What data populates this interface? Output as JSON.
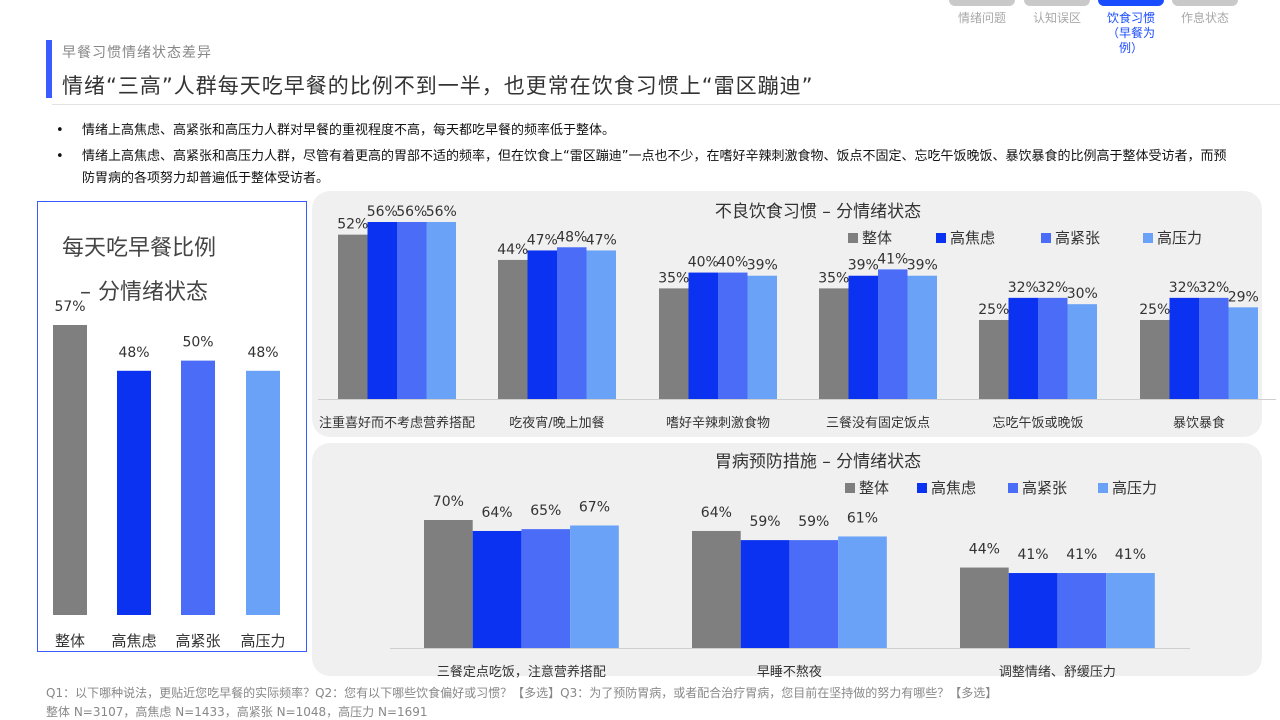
{
  "nav": {
    "tabs": [
      {
        "label": "情绪问题",
        "active": false
      },
      {
        "label": "认知误区",
        "active": false
      },
      {
        "label": "饮食习惯",
        "sub": "（早餐为例）",
        "active": true
      },
      {
        "label": "作息状态",
        "active": false
      }
    ]
  },
  "header": {
    "section": "早餐习惯情绪状态差异",
    "headline": "情绪“三高”人群每天吃早餐的比例不到一半，也更常在饮食习惯上“雷区蹦迪”"
  },
  "bullets": [
    "情绪上高焦虑、高紧张和高压力人群对早餐的重视程度不高，每天都吃早餐的频率低于整体。",
    "情绪上高焦虑、高紧张和高压力人群，尽管有着更高的胃部不适的频率，但在饮食上“雷区蹦迪”一点也不少，在嗜好辛辣刺激食物、饭点不固定、忘吃午饭晚饭、暴饮暴食的比例高于整体受访者，而预防胃病的各项努力却普遍低于整体受访者。"
  ],
  "colors": {
    "整体": "#7f7f7f",
    "高焦虑": "#0a32f0",
    "高紧张": "#4a6cf7",
    "高压力": "#6aa2f8",
    "accent": "#3a5bff",
    "panel": "#f0f0f0"
  },
  "chart_data": [
    {
      "id": "breakfast",
      "type": "bar",
      "title": "每天吃早餐比例",
      "subtitle": "– 分情绪状态",
      "categories": [
        "整体",
        "高焦虑",
        "高紧张",
        "高压力"
      ],
      "values": [
        57,
        48,
        50,
        48
      ],
      "value_suffix": "%"
    },
    {
      "id": "bad_habits",
      "type": "bar",
      "title": "不良饮食习惯 – 分情绪状态",
      "legend_position": "top-right",
      "categories": [
        "注重喜好而不考虑营养搭配",
        "吃夜宵/晚上加餐",
        "嗜好辛辣刺激食物",
        "三餐没有固定饭点",
        "忘吃午饭或晚饭",
        "暴饮暴食"
      ],
      "series": [
        {
          "name": "整体",
          "values": [
            52,
            44,
            35,
            35,
            25,
            25
          ]
        },
        {
          "name": "高焦虑",
          "values": [
            56,
            47,
            40,
            39,
            32,
            32
          ]
        },
        {
          "name": "高紧张",
          "values": [
            56,
            48,
            40,
            41,
            32,
            32
          ]
        },
        {
          "name": "高压力",
          "values": [
            56,
            47,
            39,
            39,
            30,
            29
          ]
        }
      ],
      "value_suffix": "%"
    },
    {
      "id": "prevention",
      "type": "bar",
      "title": "胃病预防措施 – 分情绪状态",
      "legend_position": "top-right",
      "categories": [
        "三餐定点吃饭，注意营养搭配",
        "早睡不熬夜",
        "调整情绪、舒缓压力"
      ],
      "series": [
        {
          "name": "整体",
          "values": [
            70,
            64,
            44
          ]
        },
        {
          "name": "高焦虑",
          "values": [
            64,
            59,
            41
          ]
        },
        {
          "name": "高紧张",
          "values": [
            65,
            59,
            41
          ]
        },
        {
          "name": "高压力",
          "values": [
            67,
            61,
            41
          ]
        }
      ],
      "value_suffix": "%"
    }
  ],
  "footnotes": [
    "Q1：以下哪种说法，更贴近您吃早餐的实际频率？Q2：您有以下哪些饮食偏好或习惯？【多选】Q3：为了预防胃病，或者配合治疗胃病，您目前在坚持做的努力有哪些？【多选】",
    "整体 N=3107，高焦虑 N=1433，高紧张 N=1048，高压力 N=1691"
  ]
}
